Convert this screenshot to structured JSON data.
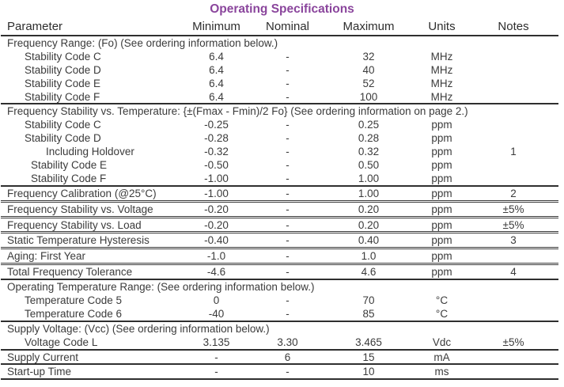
{
  "title": "Operating Specifications",
  "colors": {
    "title_accent": "#8a459c",
    "text": "#3b3b3b",
    "rule": "#2f2f2f"
  },
  "columns": [
    "Parameter",
    "Minimum",
    "Nominal",
    "Maximum",
    "Units",
    "Notes"
  ],
  "rows": [
    {
      "type": "section",
      "label": "Frequency Range: (Fo) (See ordering information below.)",
      "sep": "none"
    },
    {
      "type": "spec",
      "indent": 1,
      "param": "Stability Code C",
      "min": "6.4",
      "nom": "-",
      "max": "32",
      "units": "MHz",
      "notes": "",
      "sep": "none"
    },
    {
      "type": "spec",
      "indent": 1,
      "param": "Stability Code D",
      "min": "6.4",
      "nom": "-",
      "max": "40",
      "units": "MHz",
      "notes": "",
      "sep": "none"
    },
    {
      "type": "spec",
      "indent": 1,
      "param": "Stability Code E",
      "min": "6.4",
      "nom": "-",
      "max": "52",
      "units": "MHz",
      "notes": "",
      "sep": "none"
    },
    {
      "type": "spec",
      "indent": 1,
      "param": "Stability Code F",
      "min": "6.4",
      "nom": "-",
      "max": "100",
      "units": "MHz",
      "notes": "",
      "sep": "solid"
    },
    {
      "type": "section",
      "label": "Frequency Stability vs. Temperature: {±(Fmax - Fmin)/2 Fo} (See ordering information on page 2.)",
      "sep": "none"
    },
    {
      "type": "spec",
      "indent": 1,
      "param": "Stability Code C",
      "min": "-0.25",
      "nom": "-",
      "max": "0.25",
      "units": "ppm",
      "notes": "",
      "sep": "none"
    },
    {
      "type": "spec",
      "indent": 1,
      "param": "Stability Code D",
      "min": "-0.28",
      "nom": "-",
      "max": "0.28",
      "units": "ppm",
      "notes": "",
      "sep": "none"
    },
    {
      "type": "spec",
      "indent": 3,
      "param": "Including Holdover",
      "min": "-0.32",
      "nom": "-",
      "max": "0.32",
      "units": "ppm",
      "notes": "1",
      "sep": "none"
    },
    {
      "type": "spec",
      "indent": 2,
      "param": "Stability Code E",
      "min": "-0.50",
      "nom": "-",
      "max": "0.50",
      "units": "ppm",
      "notes": "",
      "sep": "none"
    },
    {
      "type": "spec",
      "indent": 2,
      "param": "Stability Code F",
      "min": "-1.00",
      "nom": "-",
      "max": "1.00",
      "units": "ppm",
      "notes": "",
      "sep": "solid"
    },
    {
      "type": "spec",
      "indent": 0,
      "param": "Frequency Calibration (@25°C)",
      "min": "-1.00",
      "nom": "-",
      "max": "1.00",
      "units": "ppm",
      "notes": "2",
      "sep": "double"
    },
    {
      "type": "spec",
      "indent": 0,
      "param": "Frequency Stability vs. Voltage",
      "min": "-0.20",
      "nom": "-",
      "max": "0.20",
      "units": "ppm",
      "notes": "±5%",
      "sep": "double"
    },
    {
      "type": "spec",
      "indent": 0,
      "param": "Frequency Stability vs. Load",
      "min": "-0.20",
      "nom": "-",
      "max": "0.20",
      "units": "ppm",
      "notes": "±5%",
      "sep": "double"
    },
    {
      "type": "spec",
      "indent": 0,
      "param": "Static Temperature Hysteresis",
      "min": "-0.40",
      "nom": "-",
      "max": "0.40",
      "units": "ppm",
      "notes": "3",
      "sep": "double"
    },
    {
      "type": "spec",
      "indent": 0,
      "param": "Aging: First Year",
      "min": "-1.0",
      "nom": "-",
      "max": "1.0",
      "units": "ppm",
      "notes": "",
      "sep": "double"
    },
    {
      "type": "spec",
      "indent": 0,
      "param": "Total Frequency Tolerance",
      "min": "-4.6",
      "nom": "-",
      "max": "4.6",
      "units": "ppm",
      "notes": "4",
      "sep": "solid"
    },
    {
      "type": "section",
      "label": "Operating Temperature Range: (See ordering information below.)",
      "sep": "none"
    },
    {
      "type": "spec",
      "indent": 1,
      "param": "Temperature Code 5",
      "min": "0",
      "nom": "-",
      "max": "70",
      "units": "°C",
      "notes": "",
      "sep": "none"
    },
    {
      "type": "spec",
      "indent": 1,
      "param": "Temperature Code 6",
      "min": "-40",
      "nom": "-",
      "max": "85",
      "units": "°C",
      "notes": "",
      "sep": "solid"
    },
    {
      "type": "section",
      "label": "Supply Voltage: (Vcc) (See ordering information below.)",
      "sep": "none"
    },
    {
      "type": "spec",
      "indent": 1,
      "param": "Voltage Code L",
      "min": "3.135",
      "nom": "3.30",
      "max": "3.465",
      "units": "Vdc",
      "notes": "±5%",
      "sep": "solid"
    },
    {
      "type": "spec",
      "indent": 0,
      "param": "Supply Current",
      "min": "-",
      "nom": "6",
      "max": "15",
      "units": "mA",
      "notes": "",
      "sep": "solid"
    },
    {
      "type": "spec",
      "indent": 0,
      "param": "Start-up Time",
      "min": "-",
      "nom": "-",
      "max": "10",
      "units": "ms",
      "notes": "",
      "sep": "solid"
    }
  ]
}
